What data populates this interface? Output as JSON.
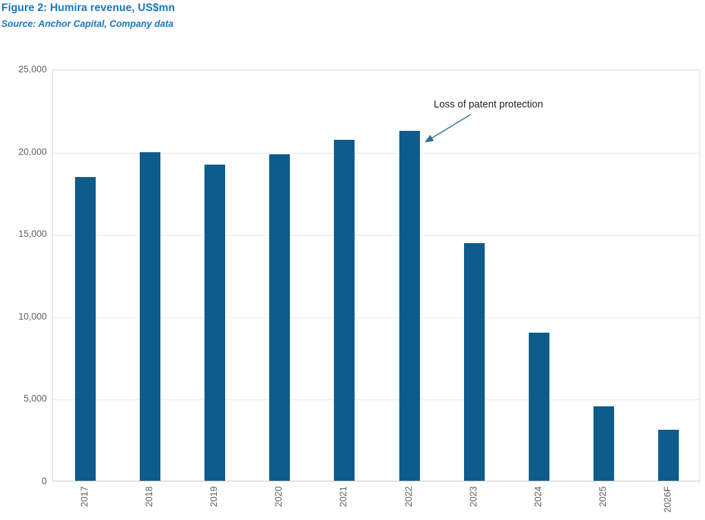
{
  "figure": {
    "title": "Figure 2: Humira revenue, US$mn",
    "source": "Source: Anchor Capital, Company data"
  },
  "chart_data": {
    "type": "bar",
    "categories": [
      "2017",
      "2018",
      "2019",
      "2020",
      "2021",
      "2022",
      "2023",
      "2024",
      "2025",
      "2026F"
    ],
    "values": [
      18427,
      19936,
      19169,
      19832,
      20694,
      21237,
      14404,
      8993,
      4500,
      3100
    ],
    "title": "Figure 2: Humira revenue, US$mn",
    "xlabel": "",
    "ylabel": "",
    "ylim": [
      0,
      25000
    ],
    "yticks": [
      0,
      5000,
      10000,
      15000,
      20000,
      25000
    ],
    "ytick_labels": [
      "0",
      "5,000",
      "10,000",
      "15,000",
      "20,000",
      "25,000"
    ],
    "grid": true,
    "legend": "none",
    "annotation": {
      "text": "Loss of patent protection",
      "target_category": "2022"
    },
    "colors": {
      "bar": "#0E5C8C",
      "title": "#1776BB",
      "axis_text": "#5F5F5F",
      "gridline": "#E9E9E9",
      "arrow": "#2E6E9E",
      "annotation_text": "#1F1F1F"
    }
  }
}
